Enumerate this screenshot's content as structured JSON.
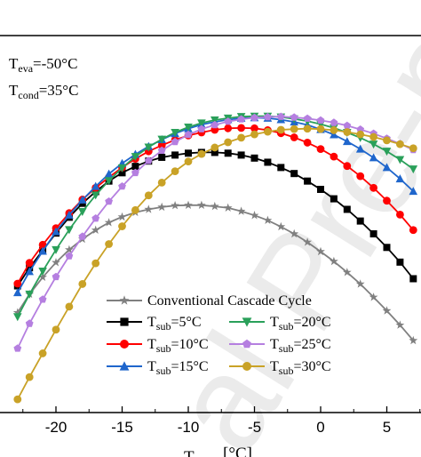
{
  "chart_data": {
    "type": "line",
    "xlabel_parts": {
      "main": "T",
      "sub": "",
      "tail": " [°C]"
    },
    "xlim": [
      -23,
      7.5
    ],
    "ylim": [
      0,
      1
    ],
    "x_ticks": [
      -20,
      -15,
      -10,
      -5,
      0,
      5
    ],
    "annotations": [
      {
        "main": "T",
        "sub": "eva",
        "tail": "=-50°C"
      },
      {
        "main": "T",
        "sub": "cond",
        "tail": "=35°C"
      }
    ],
    "watermark": "al Pre-proof",
    "series": [
      {
        "name": "Conventional Cascade Cycle",
        "legend_main": "",
        "legend_sub": "",
        "legend_tail": "Conventional Cascade Cycle",
        "color": "#808080",
        "marker": "star",
        "x": [
          -22.9,
          -22.0,
          -21.0,
          -20.0,
          -19.0,
          -18.0,
          -17.0,
          -16.0,
          -15.0,
          -14.0,
          -13.0,
          -12.0,
          -11.0,
          -10.0,
          -9.0,
          -8.0,
          -7.0,
          -6.0,
          -5.0,
          -4.0,
          -3.0,
          -2.0,
          -1.0,
          0.0,
          1.0,
          2.0,
          3.0,
          4.0,
          5.0,
          6.0,
          7.0
        ],
        "y": [
          0.265,
          0.314,
          0.359,
          0.398,
          0.432,
          0.46,
          0.484,
          0.504,
          0.519,
          0.531,
          0.539,
          0.545,
          0.549,
          0.55,
          0.55,
          0.547,
          0.543,
          0.534,
          0.523,
          0.51,
          0.493,
          0.474,
          0.452,
          0.427,
          0.401,
          0.372,
          0.341,
          0.306,
          0.27,
          0.232,
          0.191
        ]
      },
      {
        "name": "Tsub=5°C",
        "legend_main": "T",
        "legend_sub": "sub",
        "legend_tail": "=5°C",
        "color": "#000000",
        "marker": "square",
        "x": [
          -22.9,
          -22.0,
          -21.0,
          -20.0,
          -19.0,
          -18.0,
          -17.0,
          -16.0,
          -15.0,
          -14.0,
          -13.0,
          -12.0,
          -11.0,
          -10.0,
          -9.0,
          -8.0,
          -7.0,
          -6.0,
          -5.0,
          -4.0,
          -3.0,
          -2.0,
          -1.0,
          0.0,
          1.0,
          2.0,
          3.0,
          4.0,
          5.0,
          6.0,
          7.0
        ],
        "y": [
          0.336,
          0.384,
          0.43,
          0.476,
          0.518,
          0.555,
          0.586,
          0.614,
          0.636,
          0.653,
          0.667,
          0.677,
          0.683,
          0.688,
          0.69,
          0.69,
          0.688,
          0.683,
          0.675,
          0.664,
          0.65,
          0.634,
          0.614,
          0.592,
          0.567,
          0.539,
          0.508,
          0.474,
          0.438,
          0.399,
          0.355
        ]
      },
      {
        "name": "Tsub=10°C",
        "legend_main": "T",
        "legend_sub": "sub",
        "legend_tail": "=10°C",
        "color": "#ff0000",
        "marker": "circle",
        "x": [
          -22.9,
          -22.0,
          -21.0,
          -20.0,
          -19.0,
          -18.0,
          -17.0,
          -16.0,
          -15.0,
          -14.0,
          -13.0,
          -12.0,
          -11.0,
          -10.0,
          -9.0,
          -8.0,
          -7.0,
          -6.0,
          -5.0,
          -4.0,
          -3.0,
          -2.0,
          -1.0,
          0.0,
          1.0,
          2.0,
          3.0,
          4.0,
          5.0,
          6.0,
          7.0
        ],
        "y": [
          0.342,
          0.397,
          0.445,
          0.489,
          0.529,
          0.565,
          0.596,
          0.624,
          0.65,
          0.673,
          0.693,
          0.709,
          0.723,
          0.735,
          0.743,
          0.75,
          0.754,
          0.755,
          0.754,
          0.749,
          0.741,
          0.73,
          0.716,
          0.699,
          0.679,
          0.654,
          0.627,
          0.596,
          0.562,
          0.525,
          0.484
        ]
      },
      {
        "name": "Tsub=15°C",
        "legend_main": "T",
        "legend_sub": "sub",
        "legend_tail": "=15°C",
        "color": "#1f66cc",
        "marker": "triangle-up",
        "x": [
          -22.9,
          -22.0,
          -21.0,
          -20.0,
          -19.0,
          -18.0,
          -17.0,
          -16.0,
          -15.0,
          -14.0,
          -13.0,
          -12.0,
          -11.0,
          -10.0,
          -9.0,
          -8.0,
          -7.0,
          -6.0,
          -5.0,
          -4.0,
          -3.0,
          -2.0,
          -1.0,
          0.0,
          1.0,
          2.0,
          3.0,
          4.0,
          5.0,
          6.0,
          7.0
        ],
        "y": [
          0.318,
          0.374,
          0.428,
          0.48,
          0.524,
          0.564,
          0.6,
          0.633,
          0.661,
          0.685,
          0.706,
          0.724,
          0.74,
          0.753,
          0.764,
          0.771,
          0.777,
          0.781,
          0.782,
          0.781,
          0.777,
          0.771,
          0.763,
          0.751,
          0.737,
          0.719,
          0.699,
          0.676,
          0.65,
          0.62,
          0.587
        ]
      },
      {
        "name": "Tsub=20°C",
        "legend_main": "T",
        "legend_sub": "sub",
        "legend_tail": "=20°C",
        "color": "#2aa05a",
        "marker": "triangle-down",
        "x": [
          -22.9,
          -22.0,
          -21.0,
          -20.0,
          -19.0,
          -18.0,
          -17.0,
          -16.0,
          -15.0,
          -14.0,
          -13.0,
          -12.0,
          -11.0,
          -10.0,
          -9.0,
          -8.0,
          -7.0,
          -6.0,
          -5.0,
          -4.0,
          -3.0,
          -2.0,
          -1.0,
          0.0,
          1.0,
          2.0,
          3.0,
          4.0,
          5.0,
          6.0,
          7.0
        ],
        "y": [
          0.254,
          0.314,
          0.375,
          0.432,
          0.485,
          0.533,
          0.577,
          0.615,
          0.649,
          0.679,
          0.704,
          0.725,
          0.743,
          0.757,
          0.768,
          0.776,
          0.781,
          0.785,
          0.786,
          0.786,
          0.784,
          0.779,
          0.773,
          0.765,
          0.755,
          0.743,
          0.729,
          0.712,
          0.693,
          0.671,
          0.646
        ]
      },
      {
        "name": "Tsub=25°C",
        "legend_main": "T",
        "legend_sub": "sub",
        "legend_tail": "=25°C",
        "color": "#b57fe0",
        "marker": "pentagon",
        "x": [
          -22.9,
          -22.0,
          -21.0,
          -20.0,
          -19.0,
          -18.0,
          -17.0,
          -16.0,
          -15.0,
          -14.0,
          -13.0,
          -12.0,
          -11.0,
          -10.0,
          -9.0,
          -8.0,
          -7.0,
          -6.0,
          -5.0,
          -4.0,
          -3.0,
          -2.0,
          -1.0,
          0.0,
          1.0,
          2.0,
          3.0,
          4.0,
          5.0,
          6.0,
          7.0
        ],
        "y": [
          0.17,
          0.236,
          0.3,
          0.36,
          0.415,
          0.467,
          0.515,
          0.56,
          0.6,
          0.636,
          0.668,
          0.695,
          0.718,
          0.737,
          0.752,
          0.763,
          0.772,
          0.778,
          0.782,
          0.784,
          0.785,
          0.783,
          0.78,
          0.775,
          0.769,
          0.761,
          0.751,
          0.74,
          0.727,
          0.713,
          0.697
        ]
      },
      {
        "name": "Tsub=30°C",
        "legend_main": "T",
        "legend_sub": "sub",
        "legend_tail": "=30°C",
        "color": "#c9a227",
        "marker": "circle",
        "x": [
          -22.9,
          -22.0,
          -21.0,
          -20.0,
          -19.0,
          -18.0,
          -17.0,
          -16.0,
          -15.0,
          -14.0,
          -13.0,
          -12.0,
          -11.0,
          -10.0,
          -9.0,
          -8.0,
          -7.0,
          -6.0,
          -5.0,
          -4.0,
          -3.0,
          -2.0,
          -1.0,
          0.0,
          1.0,
          2.0,
          3.0,
          4.0,
          5.0,
          6.0,
          7.0
        ],
        "y": [
          0.035,
          0.094,
          0.157,
          0.22,
          0.281,
          0.341,
          0.396,
          0.447,
          0.494,
          0.537,
          0.576,
          0.61,
          0.64,
          0.666,
          0.686,
          0.703,
          0.717,
          0.729,
          0.738,
          0.745,
          0.75,
          0.752,
          0.753,
          0.752,
          0.749,
          0.744,
          0.738,
          0.731,
          0.722,
          0.712,
          0.701
        ]
      }
    ]
  }
}
